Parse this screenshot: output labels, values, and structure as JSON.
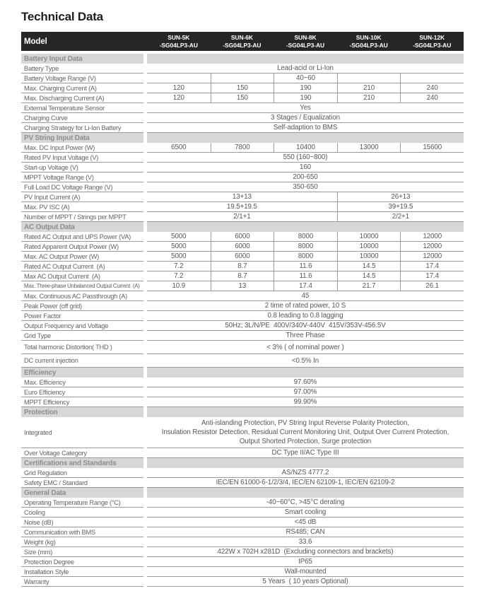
{
  "page": {
    "title": "Technical Data"
  },
  "colors": {
    "header_bg": "#262626",
    "header_text": "#ffffff",
    "section_bg": "#d7d7d7",
    "section_text": "#8d8d8d",
    "border": "#9a9a9a",
    "body_text": "#575757"
  },
  "table": {
    "model_label": "Model",
    "models": [
      {
        "name": "SUN-5K",
        "suffix": "-SG04LP3-AU"
      },
      {
        "name": "SUN-6K",
        "suffix": "-SG04LP3-AU"
      },
      {
        "name": "SUN-8K",
        "suffix": "-SG04LP3-AU"
      },
      {
        "name": "SUN-10K",
        "suffix": "-SG04LP3-AU"
      },
      {
        "name": "SUN-12K",
        "suffix": "-SG04LP3-AU"
      }
    ],
    "sections": [
      {
        "title": "Battery Input Data",
        "rows": [
          {
            "label": "Battery Type",
            "type": "full",
            "value": "Lead-acid or Li-Ion"
          },
          {
            "label": "Battery Voltage Range (V)",
            "type": "cols5",
            "values": [
              "",
              "",
              "40~60",
              "",
              ""
            ]
          },
          {
            "label": "Max. Charging Current (A)",
            "type": "cols5",
            "values": [
              "120",
              "150",
              "190",
              "210",
              "240"
            ]
          },
          {
            "label": "Max. Discharging Current (A)",
            "type": "cols5",
            "values": [
              "120",
              "150",
              "190",
              "210",
              "240"
            ]
          },
          {
            "label": "External Temperature Sensor",
            "type": "full",
            "value": "Yes"
          },
          {
            "label": "Charging Curve",
            "type": "full",
            "value": "3 Stages / Equalization"
          },
          {
            "label": "Charging Strategy for Li-Ion Battery",
            "type": "full",
            "value": "Self-adaption to BMS"
          }
        ]
      },
      {
        "title": "PV String Input Data",
        "rows": [
          {
            "label": "Max. DC Input Power (W)",
            "type": "cols5",
            "values": [
              "6500",
              "7800",
              "10400",
              "13000",
              "15600"
            ]
          },
          {
            "label": "Rated PV Input Voltage (V)",
            "type": "full",
            "value": "550 (160~800)"
          },
          {
            "label": "Start-up Voltage (V)",
            "type": "full",
            "value": "160"
          },
          {
            "label": "MPPT Voltage Range (V)",
            "type": "full",
            "value": "200-650"
          },
          {
            "label": "Full Load DC Voltage Range (V)",
            "type": "full",
            "value": "350-650"
          },
          {
            "label": "PV Input Current (A)",
            "type": "split2",
            "values": [
              "13+13",
              "26+13"
            ]
          },
          {
            "label": "Max. PV ISC (A)",
            "type": "split2",
            "values": [
              "19.5+19.5",
              "39+19.5"
            ]
          },
          {
            "label": "Number of MPPT / Strings per MPPT",
            "type": "split2",
            "values": [
              "2/1+1",
              "2/2+1"
            ]
          }
        ]
      },
      {
        "title": "AC Output Data",
        "rows": [
          {
            "label": "Rated AC Output and UPS Power (VA)",
            "type": "cols5",
            "values": [
              "5000",
              "6000",
              "8000",
              "10000",
              "12000"
            ]
          },
          {
            "label": "Rated Apparent Output Power (W)",
            "type": "cols5",
            "values": [
              "5000",
              "6000",
              "8000",
              "10000",
              "12000"
            ]
          },
          {
            "label": "Max. AC Output Power (W)",
            "type": "cols5",
            "values": [
              "5000",
              "6000",
              "8000",
              "10000",
              "12000"
            ]
          },
          {
            "label": "Rated AC Output Current  (A)",
            "type": "cols5",
            "values": [
              "7.2",
              "8.7",
              "11.6",
              "14.5",
              "17.4"
            ]
          },
          {
            "label": "Max AC Output Current  (A)",
            "type": "cols5",
            "values": [
              "7.2",
              "8.7",
              "11.6",
              "14.5",
              "17.4"
            ]
          },
          {
            "label": "Max. Three-phase Unbalanced Output Current  (A)",
            "type": "cols5",
            "small": true,
            "values": [
              "10.9",
              "13",
              "17.4",
              "21.7",
              "26.1"
            ]
          },
          {
            "label": "Max. Continuous AC Passthrough (A)",
            "type": "full",
            "value": "45"
          },
          {
            "label": "Peak Power (off grid)",
            "type": "full",
            "value": "2 time of rated power, 10 S"
          },
          {
            "label": "Power Factor",
            "type": "full",
            "value": "0.8 leading to 0.8 lagging"
          },
          {
            "label": "Output Frequency and Voltage",
            "type": "full",
            "value": "50Hz; 3L/N/PE  400V/340V-440V  415V/353V-456.5V"
          },
          {
            "label": "Grid Type",
            "type": "full",
            "value": "Three Phase"
          },
          {
            "label": "Total harmonic Distortion( THD )",
            "type": "full",
            "tall": true,
            "value": "< 3% ( of nominal power )"
          },
          {
            "label": "DC current injection",
            "type": "full",
            "tall": true,
            "value": "<0.5% In"
          }
        ]
      },
      {
        "title": "Efficiency",
        "rows": [
          {
            "label": "Max. Efficiency",
            "type": "full",
            "value": "97.60%"
          },
          {
            "label": "Euro Efficiency",
            "type": "full",
            "value": "97.00%"
          },
          {
            "label": "MPPT Efficiency",
            "type": "full",
            "value": "99.90%"
          }
        ]
      },
      {
        "title": "Protection",
        "rows": [
          {
            "label": "Integrated",
            "type": "full",
            "multi": true,
            "value": "Anti-islanding Protection, PV String Input Reverse Polarity Protection,\nInsulation Resistor Detection, Residual Current Monitoring Unit, Output Over Current Protection,\nOutput Shorted Protection, Surge protection"
          },
          {
            "label": "Over Voltage Category",
            "type": "full",
            "value": "DC Type II/AC Type III"
          }
        ]
      },
      {
        "title": "Certifications and Standards",
        "rows": [
          {
            "label": "Grid Regulation",
            "type": "full",
            "value": "AS/NZS 4777.2"
          },
          {
            "label": "Safety EMC / Standard",
            "type": "full",
            "value": "IEC/EN 61000-6-1/2/3/4, IEC/EN 62109-1, IEC/EN 62109-2"
          }
        ]
      },
      {
        "title": "General Data",
        "rows": [
          {
            "label": "Operating Temperature Range (°C)",
            "type": "full",
            "value": "-40~60°C, >45°C derating"
          },
          {
            "label": "Cooling",
            "type": "full",
            "value": "Smart cooling"
          },
          {
            "label": "Noise (dB)",
            "type": "full",
            "value": "<45 dB"
          },
          {
            "label": "Communication with BMS",
            "type": "full",
            "value": "RS485; CAN"
          },
          {
            "label": "Weight (kg)",
            "type": "full",
            "value": "33.6"
          },
          {
            "label": "Size (mm)",
            "type": "full",
            "value": "422W x 702H x281D  (Excluding connectors and brackets)"
          },
          {
            "label": "Protection Degree",
            "type": "full",
            "value": "IP65"
          },
          {
            "label": "Installation Style",
            "type": "full",
            "value": "Wall-mounted"
          },
          {
            "label": "Warranty",
            "type": "full",
            "value": "5 Years  ( 10 years Optional)"
          }
        ]
      }
    ]
  }
}
